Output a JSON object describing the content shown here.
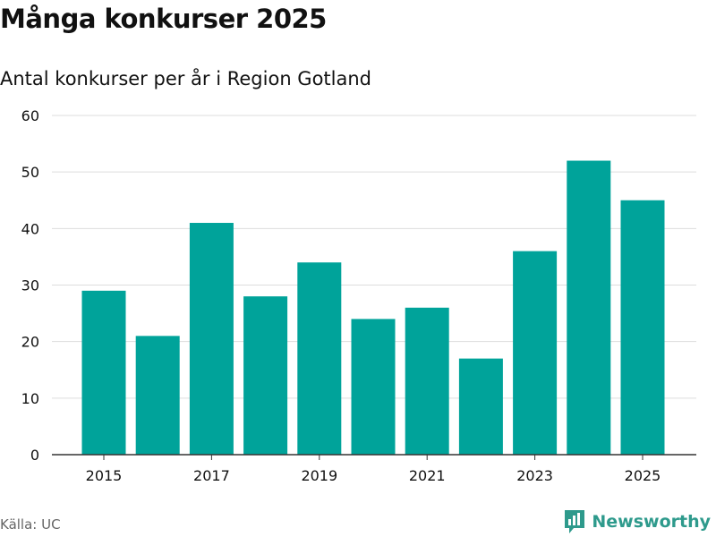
{
  "header": {
    "title": "Många konkurser 2025",
    "subtitle": "Antal konkurser per år i Region Gotland"
  },
  "footer": {
    "source": "Källa: UC",
    "brand": "Newsworthy",
    "brand_color": "#2e9a8c",
    "brand_icon": "bar-chart-speech-bubble-icon"
  },
  "colors": {
    "bar": "#00a39a",
    "grid": "#dddddd",
    "axis": "#333333",
    "text": "#111111"
  },
  "chart_data": {
    "type": "bar",
    "categories": [
      "2015",
      "2016",
      "2017",
      "2018",
      "2019",
      "2020",
      "2021",
      "2022",
      "2023",
      "2024",
      "2025"
    ],
    "values": [
      29,
      21,
      41,
      28,
      34,
      24,
      26,
      17,
      36,
      52,
      45
    ],
    "x_tick_labels": [
      "2015",
      "2017",
      "2019",
      "2021",
      "2023",
      "2025"
    ],
    "y_ticks": [
      0,
      10,
      20,
      30,
      40,
      50,
      60
    ],
    "ylim": [
      0,
      60
    ],
    "grid": true,
    "legend": "none"
  }
}
